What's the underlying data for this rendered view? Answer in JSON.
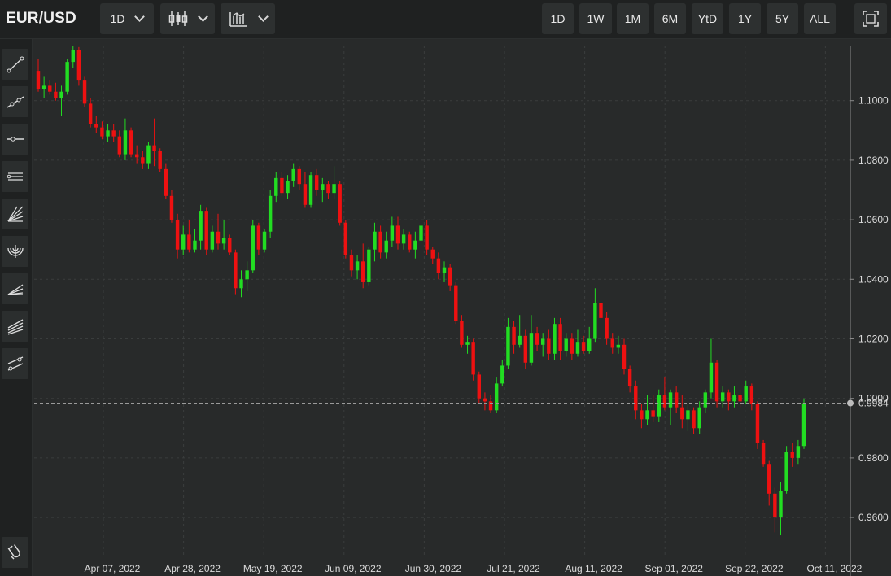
{
  "header": {
    "symbol": "EUR/USD",
    "interval": "1D",
    "chart_style_icon": "candlestick-icon",
    "indicator_icon": "bar-chart-icon",
    "ranges": [
      "1D",
      "1W",
      "1M",
      "6M",
      "YtD",
      "1Y",
      "5Y",
      "ALL"
    ],
    "fullscreen_icon": "fullscreen-icon"
  },
  "toolbar": {
    "tools": [
      "trend-line-icon",
      "extended-line-icon",
      "horizontal-ray-icon",
      "parallel-channel-icon",
      "gann-fan-icon",
      "fib-arc-icon",
      "fib-fan-icon",
      "pitchfork-icon",
      "regression-trend-icon"
    ],
    "magnet_icon": "magnet-icon"
  },
  "colors": {
    "up": "#22dd22",
    "down": "#ee1111",
    "background": "#282a2a",
    "grid": "#3a3d3d",
    "last_line": "#9a9a9a"
  },
  "chart_data": {
    "type": "candlestick",
    "title": "",
    "xlabel": "",
    "ylabel": "",
    "ylim": [
      0.948,
      1.1185
    ],
    "y_ticks": [
      "1.1000",
      "1.0800",
      "1.0600",
      "1.0400",
      "1.0200",
      "1.0000",
      "0.9800",
      "0.9600"
    ],
    "x_ticks": [
      "Apr 07, 2022",
      "Apr 28, 2022",
      "May 19, 2022",
      "Jun 09, 2022",
      "Jun 30, 2022",
      "Jul 21, 2022",
      "Aug 11, 2022",
      "Sep 01, 2022",
      "Sep 22, 2022",
      "Oct 11, 2022"
    ],
    "last_price": "0.9984",
    "grid": true,
    "series": [
      {
        "ohlc": [
          [
            1.11,
            1.114,
            1.103,
            1.104
          ],
          [
            1.104,
            1.108,
            1.101,
            1.105
          ],
          [
            1.105,
            1.107,
            1.102,
            1.103
          ],
          [
            1.103,
            1.106,
            1.1,
            1.101
          ],
          [
            1.101,
            1.105,
            1.095,
            1.103
          ],
          [
            1.103,
            1.114,
            1.102,
            1.113
          ],
          [
            1.113,
            1.1185,
            1.111,
            1.117
          ],
          [
            1.117,
            1.118,
            1.105,
            1.107
          ],
          [
            1.107,
            1.108,
            1.098,
            1.099
          ],
          [
            1.099,
            1.101,
            1.091,
            1.092
          ],
          [
            1.092,
            1.095,
            1.089,
            1.091
          ],
          [
            1.091,
            1.093,
            1.087,
            1.088
          ],
          [
            1.088,
            1.092,
            1.086,
            1.09
          ],
          [
            1.09,
            1.092,
            1.086,
            1.088
          ],
          [
            1.088,
            1.09,
            1.081,
            1.082
          ],
          [
            1.082,
            1.094,
            1.08,
            1.09
          ],
          [
            1.09,
            1.091,
            1.081,
            1.082
          ],
          [
            1.082,
            1.085,
            1.079,
            1.081
          ],
          [
            1.081,
            1.083,
            1.077,
            1.079
          ],
          [
            1.079,
            1.086,
            1.077,
            1.085
          ],
          [
            1.085,
            1.094,
            1.078,
            1.083
          ],
          [
            1.083,
            1.084,
            1.076,
            1.077
          ],
          [
            1.077,
            1.079,
            1.067,
            1.068
          ],
          [
            1.068,
            1.07,
            1.059,
            1.06
          ],
          [
            1.06,
            1.062,
            1.047,
            1.05
          ],
          [
            1.05,
            1.058,
            1.048,
            1.055
          ],
          [
            1.055,
            1.06,
            1.049,
            1.05
          ],
          [
            1.05,
            1.057,
            1.049,
            1.053
          ],
          [
            1.053,
            1.065,
            1.05,
            1.063
          ],
          [
            1.063,
            1.064,
            1.048,
            1.05
          ],
          [
            1.05,
            1.058,
            1.049,
            1.056
          ],
          [
            1.056,
            1.062,
            1.05,
            1.052
          ],
          [
            1.052,
            1.06,
            1.05,
            1.054
          ],
          [
            1.054,
            1.055,
            1.048,
            1.049
          ],
          [
            1.049,
            1.05,
            1.035,
            1.037
          ],
          [
            1.037,
            1.043,
            1.034,
            1.04
          ],
          [
            1.04,
            1.046,
            1.036,
            1.043
          ],
          [
            1.043,
            1.06,
            1.042,
            1.058
          ],
          [
            1.058,
            1.059,
            1.048,
            1.05
          ],
          [
            1.05,
            1.057,
            1.049,
            1.056
          ],
          [
            1.056,
            1.07,
            1.054,
            1.068
          ],
          [
            1.068,
            1.076,
            1.066,
            1.074
          ],
          [
            1.074,
            1.076,
            1.068,
            1.069
          ],
          [
            1.069,
            1.075,
            1.067,
            1.073
          ],
          [
            1.073,
            1.079,
            1.071,
            1.077
          ],
          [
            1.077,
            1.078,
            1.07,
            1.072
          ],
          [
            1.072,
            1.076,
            1.064,
            1.065
          ],
          [
            1.065,
            1.076,
            1.064,
            1.075
          ],
          [
            1.075,
            1.077,
            1.068,
            1.07
          ],
          [
            1.07,
            1.074,
            1.066,
            1.072
          ],
          [
            1.072,
            1.073,
            1.067,
            1.069
          ],
          [
            1.069,
            1.078,
            1.067,
            1.072
          ],
          [
            1.072,
            1.073,
            1.058,
            1.059
          ],
          [
            1.059,
            1.06,
            1.047,
            1.048
          ],
          [
            1.048,
            1.05,
            1.041,
            1.043
          ],
          [
            1.043,
            1.048,
            1.04,
            1.046
          ],
          [
            1.046,
            1.052,
            1.037,
            1.039
          ],
          [
            1.039,
            1.051,
            1.038,
            1.05
          ],
          [
            1.05,
            1.059,
            1.046,
            1.056
          ],
          [
            1.056,
            1.058,
            1.047,
            1.049
          ],
          [
            1.049,
            1.056,
            1.047,
            1.053
          ],
          [
            1.053,
            1.061,
            1.051,
            1.058
          ],
          [
            1.058,
            1.061,
            1.05,
            1.052
          ],
          [
            1.052,
            1.057,
            1.05,
            1.055
          ],
          [
            1.055,
            1.056,
            1.049,
            1.05
          ],
          [
            1.05,
            1.056,
            1.047,
            1.053
          ],
          [
            1.053,
            1.062,
            1.051,
            1.058
          ],
          [
            1.058,
            1.06,
            1.048,
            1.05
          ],
          [
            1.05,
            1.051,
            1.045,
            1.047
          ],
          [
            1.047,
            1.049,
            1.04,
            1.042
          ],
          [
            1.042,
            1.046,
            1.039,
            1.044
          ],
          [
            1.044,
            1.045,
            1.036,
            1.038
          ],
          [
            1.038,
            1.039,
            1.025,
            1.026
          ],
          [
            1.026,
            1.028,
            1.017,
            1.018
          ],
          [
            1.018,
            1.021,
            1.015,
            1.019
          ],
          [
            1.019,
            1.02,
            1.006,
            1.008
          ],
          [
            1.008,
            1.009,
            0.998,
            1.0
          ],
          [
            1.0,
            1.002,
            0.996,
            0.999
          ],
          [
            0.999,
            1.001,
            0.995,
            0.996
          ],
          [
            0.996,
            1.007,
            0.995,
            1.005
          ],
          [
            1.005,
            1.013,
            1.004,
            1.011
          ],
          [
            1.011,
            1.027,
            1.01,
            1.024
          ],
          [
            1.024,
            1.026,
            1.015,
            1.018
          ],
          [
            1.018,
            1.028,
            1.017,
            1.021
          ],
          [
            1.021,
            1.023,
            1.01,
            1.012
          ],
          [
            1.012,
            1.028,
            1.011,
            1.022
          ],
          [
            1.022,
            1.024,
            1.016,
            1.018
          ],
          [
            1.018,
            1.022,
            1.014,
            1.02
          ],
          [
            1.02,
            1.023,
            1.013,
            1.015
          ],
          [
            1.015,
            1.027,
            1.013,
            1.025
          ],
          [
            1.025,
            1.027,
            1.013,
            1.016
          ],
          [
            1.016,
            1.022,
            1.014,
            1.02
          ],
          [
            1.02,
            1.022,
            1.013,
            1.015
          ],
          [
            1.015,
            1.023,
            1.014,
            1.019
          ],
          [
            1.019,
            1.021,
            1.015,
            1.016
          ],
          [
            1.016,
            1.024,
            1.015,
            1.02
          ],
          [
            1.02,
            1.037,
            1.019,
            1.032
          ],
          [
            1.032,
            1.036,
            1.025,
            1.027
          ],
          [
            1.027,
            1.029,
            1.018,
            1.02
          ],
          [
            1.02,
            1.022,
            1.015,
            1.017
          ],
          [
            1.017,
            1.021,
            1.015,
            1.018
          ],
          [
            1.018,
            1.02,
            1.008,
            1.01
          ],
          [
            1.01,
            1.011,
            1.002,
            1.004
          ],
          [
            1.004,
            1.006,
            0.993,
            0.996
          ],
          [
            0.996,
            0.998,
            0.99,
            0.993
          ],
          [
            0.993,
            1.001,
            0.991,
            0.996
          ],
          [
            0.996,
            1.001,
            0.992,
            0.994
          ],
          [
            0.994,
            1.003,
            0.992,
            1.001
          ],
          [
            1.001,
            1.007,
            0.996,
            0.997
          ],
          [
            0.997,
            1.003,
            0.991,
            1.002
          ],
          [
            1.002,
            1.004,
            0.995,
            0.997
          ],
          [
            0.997,
            1.001,
            0.99,
            0.993
          ],
          [
            0.993,
            0.998,
            0.989,
            0.996
          ],
          [
            0.996,
            0.997,
            0.988,
            0.99
          ],
          [
            0.99,
            0.999,
            0.988,
            0.997
          ],
          [
            0.997,
            1.003,
            0.995,
            1.002
          ],
          [
            1.002,
            1.02,
            1.0,
            1.012
          ],
          [
            1.012,
            1.013,
            0.997,
            0.999
          ],
          [
            0.999,
            1.004,
            0.997,
            1.002
          ],
          [
            1.002,
            1.003,
            0.996,
            0.999
          ],
          [
            0.999,
            1.004,
            0.997,
            1.001
          ],
          [
            1.001,
            1.003,
            0.997,
            0.999
          ],
          [
            0.999,
            1.006,
            0.998,
            1.004
          ],
          [
            1.004,
            1.005,
            0.996,
            0.998
          ],
          [
            0.998,
            0.999,
            0.983,
            0.985
          ],
          [
            0.985,
            0.986,
            0.977,
            0.978
          ],
          [
            0.978,
            0.979,
            0.964,
            0.968
          ],
          [
            0.968,
            0.97,
            0.955,
            0.96
          ],
          [
            0.96,
            0.972,
            0.954,
            0.969
          ],
          [
            0.969,
            0.984,
            0.968,
            0.982
          ],
          [
            0.982,
            0.985,
            0.977,
            0.98
          ],
          [
            0.98,
            0.986,
            0.978,
            0.984
          ],
          [
            0.984,
            1.0,
            0.983,
            0.9984
          ]
        ]
      }
    ]
  }
}
